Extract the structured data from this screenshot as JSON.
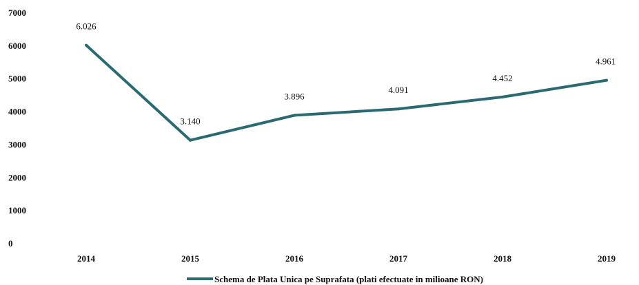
{
  "chart_data": {
    "type": "line",
    "categories": [
      "2014",
      "2015",
      "2016",
      "2017",
      "2018",
      "2019"
    ],
    "series": [
      {
        "name": "Schema de Plata Unica pe Suprafata (plati efectuate in milioane RON)",
        "values": [
          6026,
          3140,
          3896,
          4091,
          4452,
          4961
        ],
        "labels": [
          "6.026",
          "3.140",
          "3.896",
          "4.091",
          "4.452",
          "4.961"
        ],
        "color": "#2a6a72"
      }
    ],
    "yticks": [
      "0",
      "1000",
      "2000",
      "3000",
      "4000",
      "5000",
      "6000",
      "7000"
    ],
    "ylim": [
      0,
      7000
    ],
    "grid": false,
    "legend_position": "bottom-center",
    "title": "",
    "xlabel": "",
    "ylabel": ""
  }
}
